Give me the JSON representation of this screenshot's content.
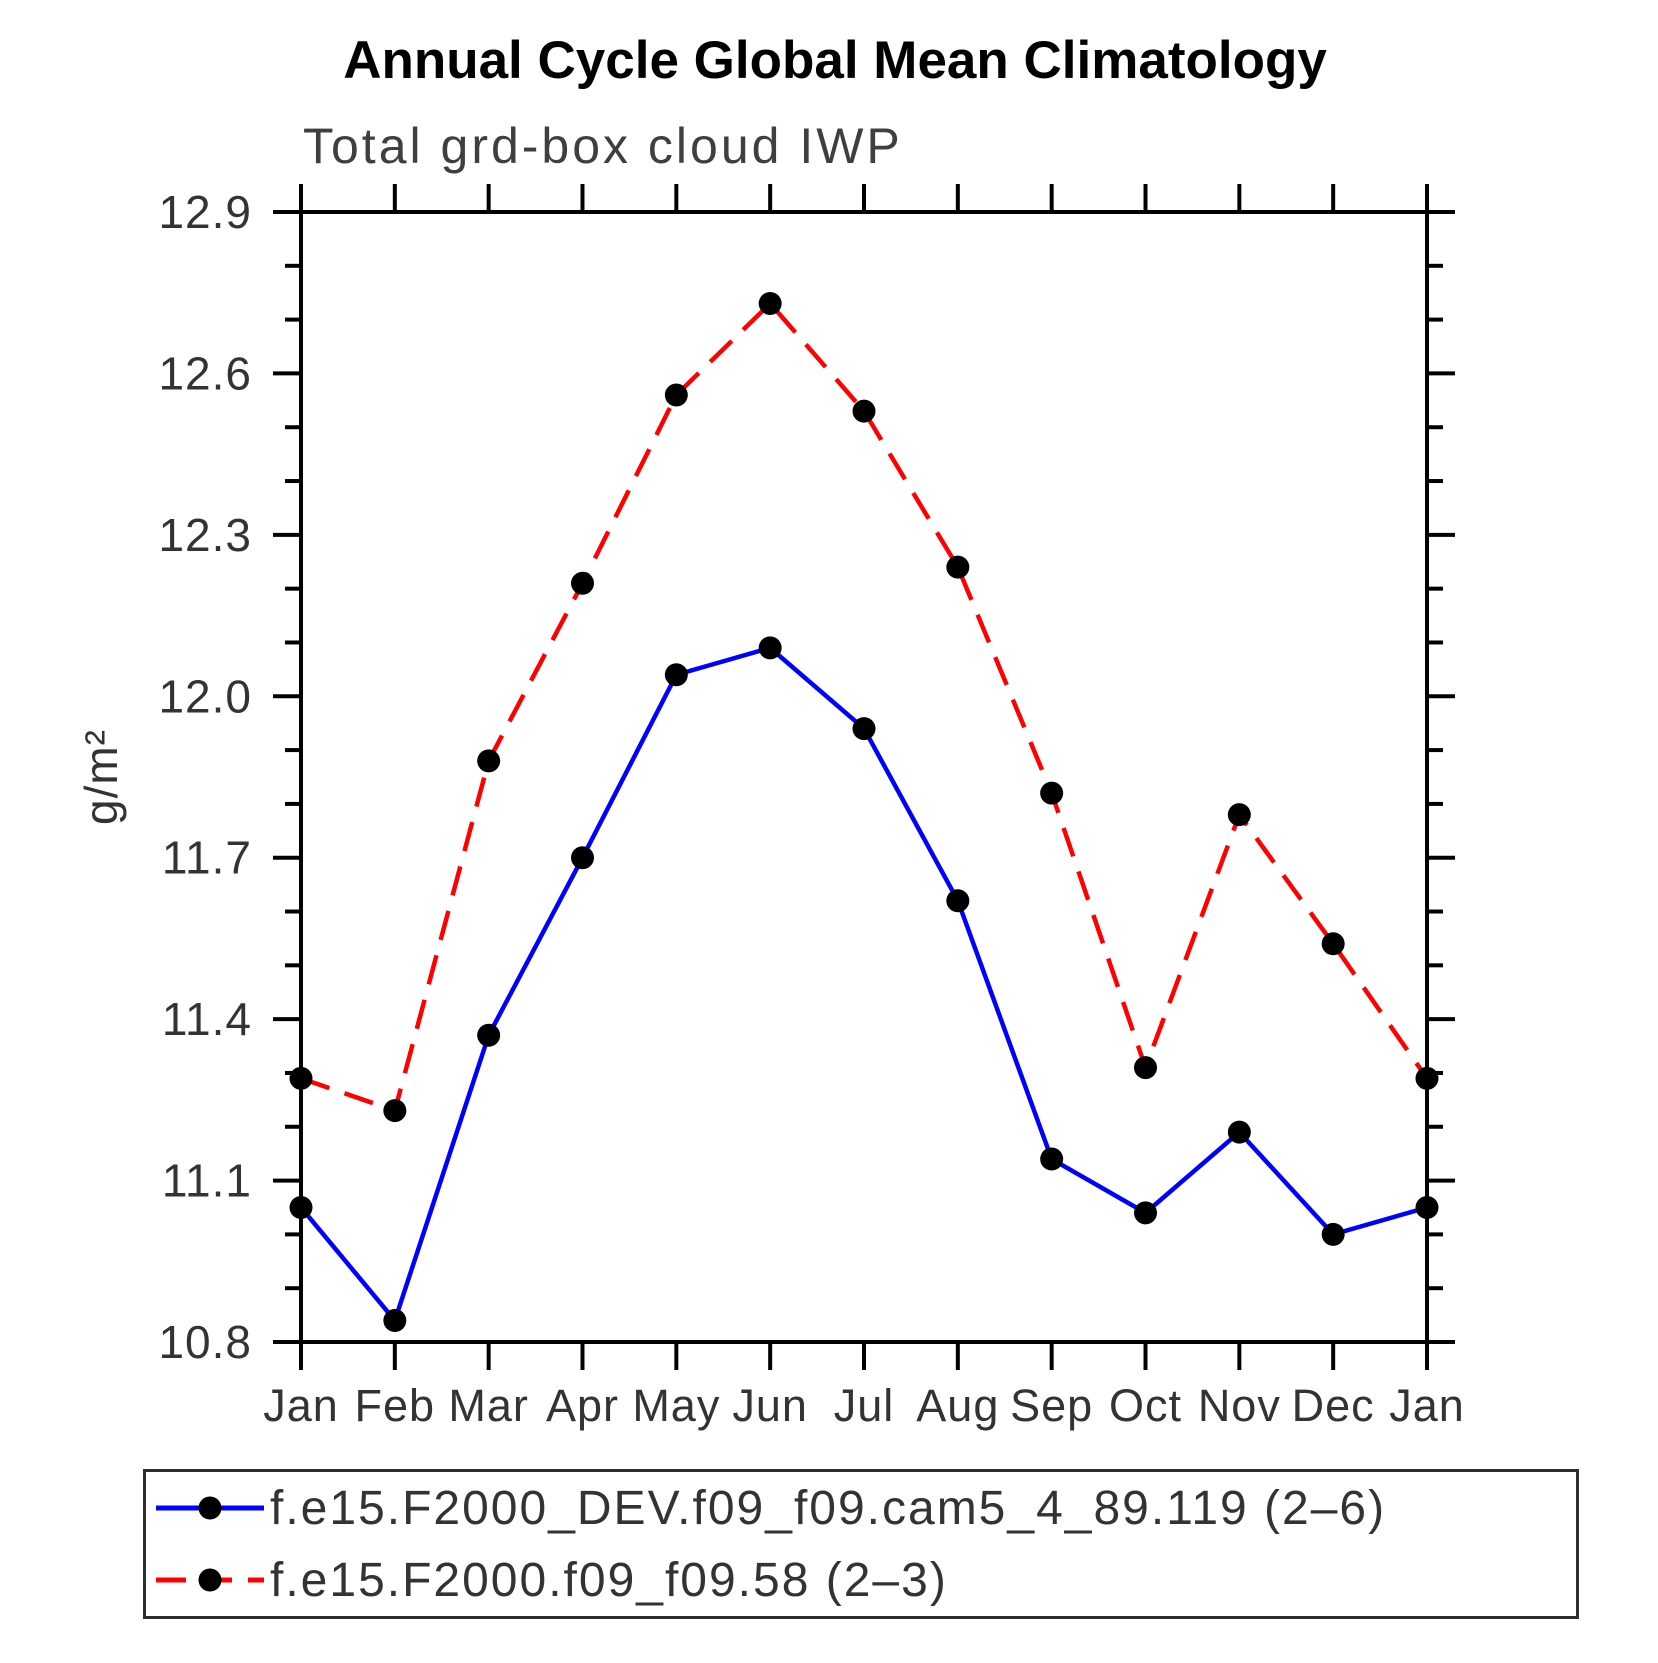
{
  "chart_data": {
    "type": "line",
    "title": "Annual Cycle Global Mean Climatology",
    "subtitle": "Total grd-box cloud IWP",
    "ylabel": "g/m²",
    "xlabel": "",
    "grid": false,
    "legend_position": "bottom",
    "x_categories": [
      "Jan",
      "Feb",
      "Mar",
      "Apr",
      "May",
      "Jun",
      "Jul",
      "Aug",
      "Sep",
      "Oct",
      "Nov",
      "Dec",
      "Jan"
    ],
    "ylim": [
      10.8,
      12.9
    ],
    "y_major_step": 0.3,
    "y_minor_step": 0.1,
    "y_tick_labels": [
      "10.8",
      "11.1",
      "11.4",
      "11.7",
      "12.0",
      "12.3",
      "12.6",
      "12.9"
    ],
    "marker": "filled-circle",
    "marker_color": "#000000",
    "series": [
      {
        "name": "f.e15.F2000_DEV.f09_f09.cam5_4_89.119 (2–6)",
        "color": "#0000ff",
        "line_style": "solid",
        "values": [
          11.05,
          10.84,
          11.37,
          11.7,
          12.04,
          12.09,
          11.94,
          11.62,
          11.14,
          11.04,
          11.19,
          11.0,
          11.05
        ]
      },
      {
        "name": "f.e15.F2000.f09_f09.58 (2–3)",
        "color": "#ff0000",
        "line_style": "dashed",
        "values": [
          11.29,
          11.23,
          11.88,
          12.21,
          12.56,
          12.73,
          12.53,
          12.24,
          11.82,
          11.31,
          11.78,
          11.54,
          11.29
        ]
      }
    ],
    "axis_color": "#000000"
  }
}
